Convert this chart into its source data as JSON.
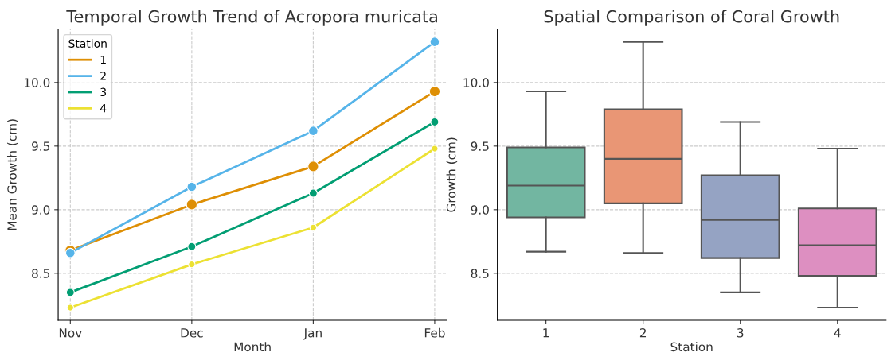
{
  "chart_data": [
    {
      "type": "line",
      "title": "Temporal Growth Trend of Acropora muricata",
      "xlabel": "Month",
      "ylabel": "Mean Growth (cm)",
      "categories": [
        "Nov",
        "Dec",
        "Jan",
        "Feb"
      ],
      "ylim": [
        8.13,
        10.42
      ],
      "yticks": [
        {
          "value": 8.5,
          "label": "8.5"
        },
        {
          "value": 9.0,
          "label": "9.0"
        },
        {
          "value": 9.5,
          "label": "9.5"
        },
        {
          "value": 10.0,
          "label": "10.0"
        }
      ],
      "grid": true,
      "legend": "top left",
      "legend_title": "Station",
      "marker": "circle",
      "line_style": "solid",
      "series": [
        {
          "name": "1",
          "color": "#de8f05",
          "values": [
            8.68,
            9.04,
            9.34,
            9.93
          ]
        },
        {
          "name": "2",
          "color": "#56b4e9",
          "values": [
            8.66,
            9.18,
            9.62,
            10.32
          ]
        },
        {
          "name": "3",
          "color": "#029e73",
          "values": [
            8.35,
            8.71,
            9.13,
            9.69
          ]
        },
        {
          "name": "4",
          "color": "#ece133",
          "values": [
            8.23,
            8.57,
            8.86,
            9.48
          ]
        }
      ]
    },
    {
      "type": "box",
      "title": "Spatial Comparison of Coral Growth",
      "xlabel": "Station",
      "ylabel": "Growth (cm)",
      "categories": [
        "1",
        "2",
        "3",
        "4"
      ],
      "ylim": [
        8.13,
        10.42
      ],
      "yticks": [
        {
          "value": 8.5,
          "label": "8.5"
        },
        {
          "value": 9.0,
          "label": "9.0"
        },
        {
          "value": 9.5,
          "label": "9.5"
        },
        {
          "value": 10.0,
          "label": "10.0"
        }
      ],
      "grid": "y",
      "colors": [
        "#72b6a1",
        "#e99675",
        "#95a3c3",
        "#dd8fc1"
      ],
      "boxes": [
        {
          "low": 8.67,
          "q1": 8.94,
          "median": 9.19,
          "q3": 9.49,
          "high": 9.93
        },
        {
          "low": 8.66,
          "q1": 9.05,
          "median": 9.4,
          "q3": 9.79,
          "high": 10.32
        },
        {
          "low": 8.35,
          "q1": 8.62,
          "median": 8.92,
          "q3": 9.27,
          "high": 9.69
        },
        {
          "low": 8.23,
          "q1": 8.48,
          "median": 8.72,
          "q3": 9.01,
          "high": 9.48
        }
      ]
    }
  ]
}
